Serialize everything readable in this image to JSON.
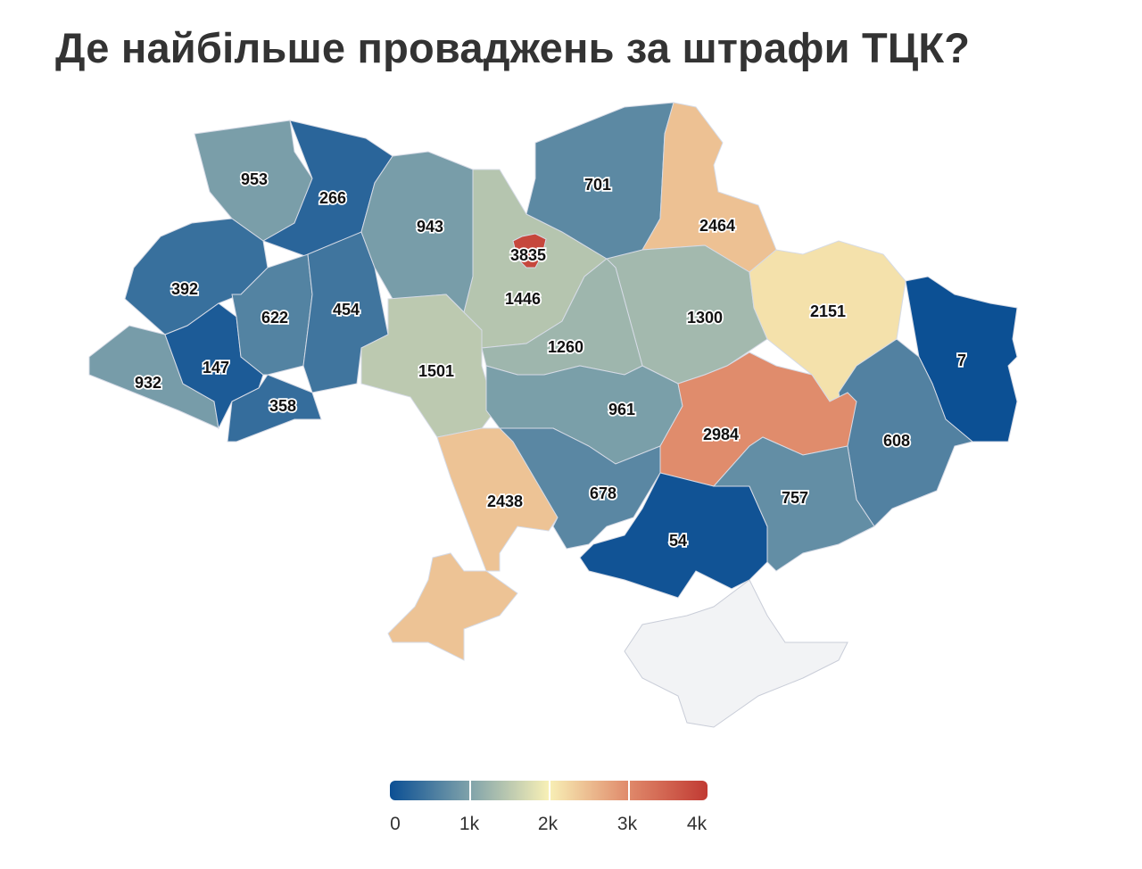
{
  "title": "Де найбільше проваджень за штрафи ТЦК?",
  "chart_data": {
    "type": "choropleth",
    "title": "Де найбільше проваджень за штрафи ТЦК?",
    "regions": [
      {
        "value": 953
      },
      {
        "value": 266
      },
      {
        "value": 392
      },
      {
        "value": 932
      },
      {
        "value": 147
      },
      {
        "value": 358
      },
      {
        "value": 622
      },
      {
        "value": 454
      },
      {
        "value": 943
      },
      {
        "value": 1501
      },
      {
        "value": 1446
      },
      {
        "value": 3835
      },
      {
        "value": 701
      },
      {
        "value": 2464
      },
      {
        "value": 1300
      },
      {
        "value": 1260
      },
      {
        "value": 2151
      },
      {
        "value": 7
      },
      {
        "value": 608
      },
      {
        "value": 961
      },
      {
        "value": 2984
      },
      {
        "value": 2438
      },
      {
        "value": 678
      },
      {
        "value": 54
      },
      {
        "value": 757
      },
      {
        "value": null
      }
    ],
    "color_scale": {
      "domain": [
        0,
        1000,
        2000,
        3000,
        4000
      ],
      "colors": [
        "#0b4f94",
        "#7fa2aa",
        "#f8f0b6",
        "#e08a6b",
        "#c13a33"
      ],
      "no_data_color": "#f2f3f5"
    },
    "legend": {
      "ticks": [
        "0",
        "1k",
        "2k",
        "3k",
        "4k"
      ],
      "placement": "bottom-center"
    }
  }
}
